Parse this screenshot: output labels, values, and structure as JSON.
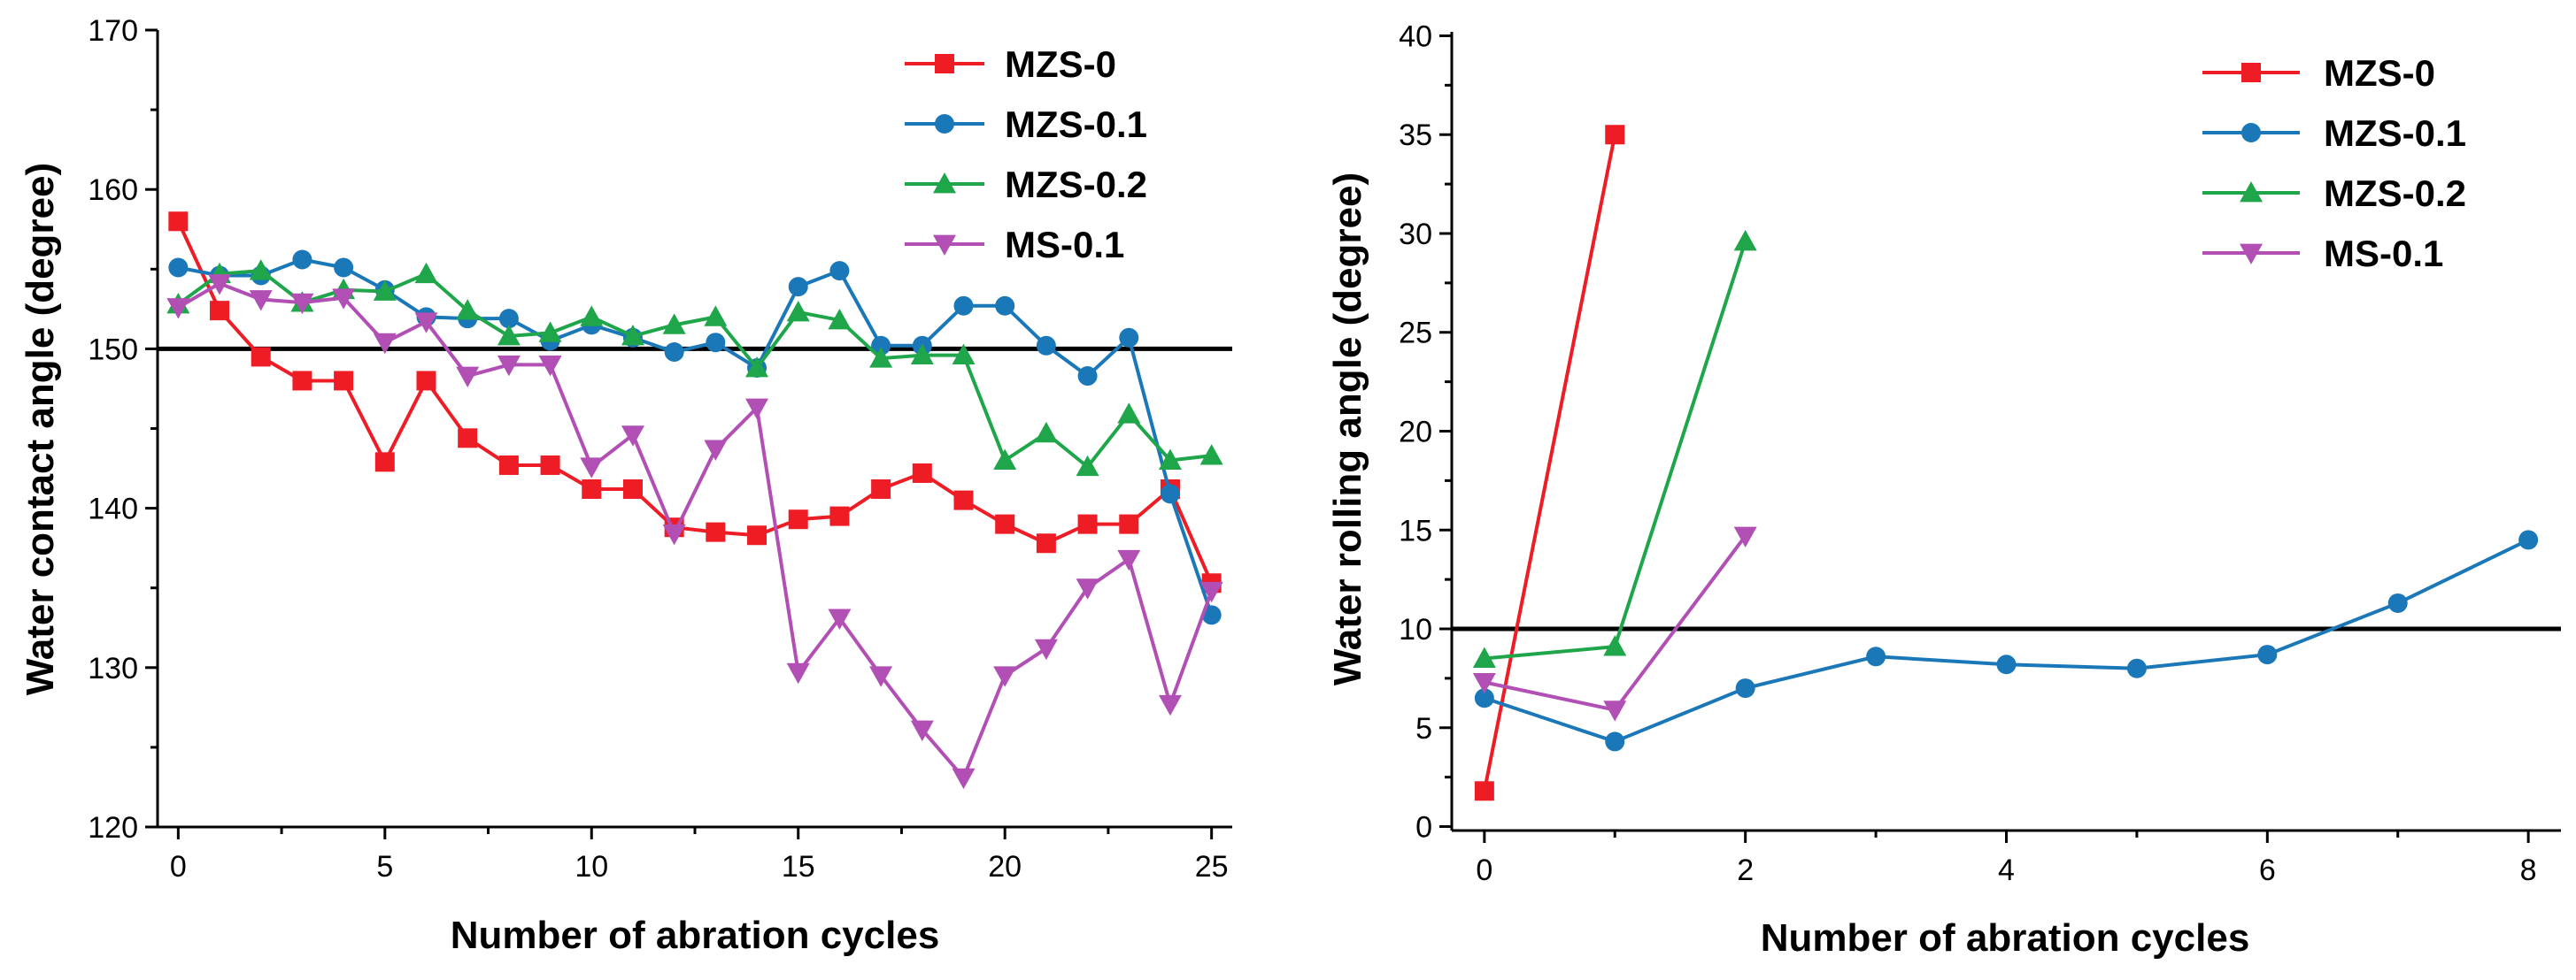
{
  "chart_data": [
    {
      "type": "line",
      "id": "left",
      "xlabel": "Number of abration cycles",
      "ylabel": "Water contact angle (degree)",
      "xlim": [
        -0.5,
        25.5
      ],
      "ylim": [
        120,
        170
      ],
      "xticks": [
        0,
        5,
        10,
        15,
        20,
        25
      ],
      "yticks": [
        120,
        130,
        140,
        150,
        160,
        170
      ],
      "reference_line": 150,
      "legend_position": "top-right",
      "series": [
        {
          "name": "MZS-0",
          "color": "#ee1c25",
          "marker": "square",
          "x": [
            0,
            1,
            2,
            3,
            4,
            5,
            6,
            7,
            8,
            9,
            10,
            11,
            12,
            13,
            14,
            15,
            16,
            17,
            18,
            19,
            20,
            21,
            22,
            23,
            24,
            25
          ],
          "y": [
            158,
            152.4,
            149.5,
            148,
            148,
            142.9,
            148,
            144.4,
            142.7,
            142.7,
            141.2,
            141.2,
            138.8,
            138.5,
            138.3,
            139.3,
            139.5,
            141.2,
            142.2,
            140.5,
            139,
            137.8,
            139,
            139,
            141.2,
            135.3
          ]
        },
        {
          "name": "MZS-0.1",
          "color": "#1a78b9",
          "marker": "circle",
          "x": [
            0,
            1,
            2,
            3,
            4,
            5,
            6,
            7,
            8,
            9,
            10,
            11,
            12,
            13,
            14,
            15,
            16,
            17,
            18,
            19,
            20,
            21,
            22,
            23,
            24,
            25
          ],
          "y": [
            155.1,
            154.6,
            154.6,
            155.6,
            155.1,
            153.7,
            152,
            151.9,
            151.9,
            150.5,
            151.5,
            150.7,
            149.8,
            150.4,
            148.8,
            153.9,
            154.9,
            150.2,
            150.2,
            152.7,
            152.7,
            150.2,
            148.3,
            150.7,
            140.9,
            133.3
          ]
        },
        {
          "name": "MZS-0.2",
          "color": "#1fa64a",
          "marker": "triangle-up",
          "x": [
            0,
            1,
            2,
            3,
            4,
            5,
            6,
            7,
            8,
            9,
            10,
            11,
            12,
            13,
            14,
            15,
            16,
            17,
            18,
            19,
            20,
            21,
            22,
            23,
            24,
            25
          ],
          "y": [
            152.8,
            154.7,
            154.9,
            152.9,
            153.7,
            153.6,
            154.7,
            152.4,
            150.8,
            151,
            152,
            150.8,
            151.5,
            152,
            148.8,
            152.3,
            151.8,
            149.4,
            149.6,
            149.6,
            143,
            144.7,
            142.6,
            145.9,
            143,
            143.3
          ]
        },
        {
          "name": "MS-0.1",
          "color": "#b24fb4",
          "marker": "triangle-down",
          "x": [
            0,
            1,
            2,
            3,
            4,
            5,
            6,
            7,
            8,
            9,
            10,
            11,
            12,
            13,
            14,
            15,
            16,
            17,
            18,
            19,
            20,
            21,
            22,
            23,
            24,
            25
          ],
          "y": [
            152.6,
            154.1,
            153.1,
            152.9,
            153.2,
            150.4,
            151.7,
            148.3,
            149,
            149,
            142.6,
            144.6,
            138.4,
            143.7,
            146.3,
            129.7,
            133.1,
            129.5,
            126.1,
            123.1,
            129.5,
            131.2,
            135,
            136.8,
            127.7,
            134.8
          ]
        }
      ]
    },
    {
      "type": "line",
      "id": "right",
      "xlabel": "Number of abration cycles",
      "ylabel": "Water rolling angle (degree)",
      "xlim": [
        -0.25,
        8.25
      ],
      "ylim": [
        -0.2,
        40.2
      ],
      "xticks": [
        0,
        2,
        4,
        6,
        8
      ],
      "yticks": [
        0,
        5,
        10,
        15,
        20,
        25,
        30,
        35,
        40
      ],
      "reference_line": 10,
      "legend_position": "top-right",
      "series": [
        {
          "name": "MZS-0",
          "color": "#ee1c25",
          "marker": "square",
          "x": [
            0,
            1
          ],
          "y": [
            1.8,
            35
          ]
        },
        {
          "name": "MZS-0.1",
          "color": "#1a78b9",
          "marker": "circle",
          "x": [
            0,
            1,
            2,
            3,
            4,
            5,
            6,
            7,
            8
          ],
          "y": [
            6.5,
            4.3,
            7,
            8.6,
            8.2,
            8,
            8.7,
            11.3,
            14.5
          ]
        },
        {
          "name": "MZS-0.2",
          "color": "#1fa64a",
          "marker": "triangle-up",
          "x": [
            0,
            1,
            2
          ],
          "y": [
            8.5,
            9.1,
            29.6
          ]
        },
        {
          "name": "MS-0.1",
          "color": "#b24fb4",
          "marker": "triangle-down",
          "x": [
            0,
            1,
            2
          ],
          "y": [
            7.3,
            5.9,
            14.7
          ]
        }
      ]
    }
  ]
}
